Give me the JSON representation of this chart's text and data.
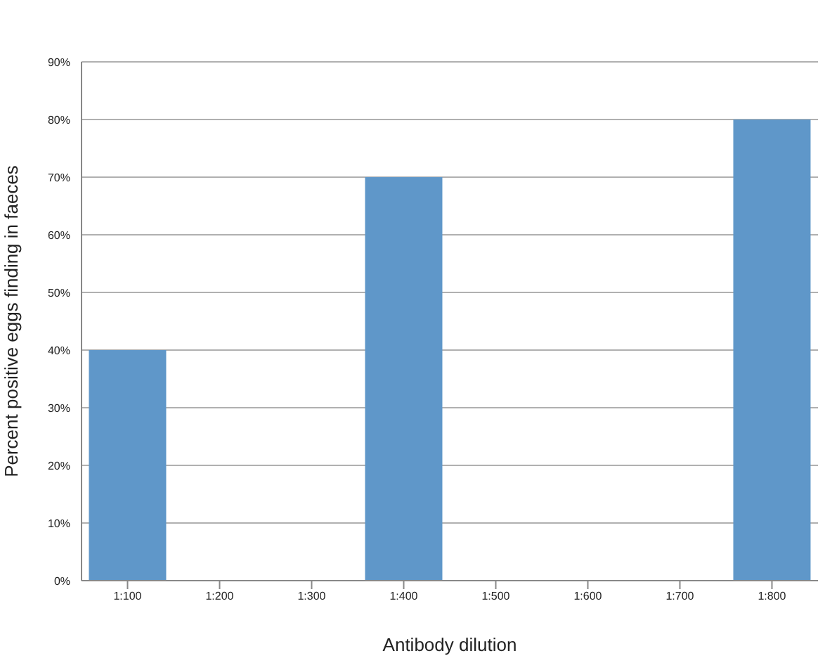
{
  "chart_data": {
    "type": "bar",
    "xlabel": "Antibody dilution",
    "ylabel": "Percent positive eggs finding in faeces",
    "categories": [
      "1:100",
      "1:200",
      "1:300",
      "1:400",
      "1:500",
      "1:600",
      "1:700",
      "1:800"
    ],
    "values": [
      40,
      0,
      0,
      70,
      0,
      0,
      0,
      80
    ],
    "color": "#5f97c9",
    "ylim": [
      0,
      90
    ],
    "yticks": [
      {
        "value": 0,
        "label": "0%"
      },
      {
        "value": 10,
        "label": "10%"
      },
      {
        "value": 20,
        "label": "20%"
      },
      {
        "value": 30,
        "label": "30%"
      },
      {
        "value": 40,
        "label": "40%"
      },
      {
        "value": 50,
        "label": "50%"
      },
      {
        "value": 60,
        "label": "60%"
      },
      {
        "value": 70,
        "label": "70%"
      },
      {
        "value": 80,
        "label": "80%"
      },
      {
        "value": 90,
        "label": "90%"
      }
    ],
    "grid": "y"
  }
}
